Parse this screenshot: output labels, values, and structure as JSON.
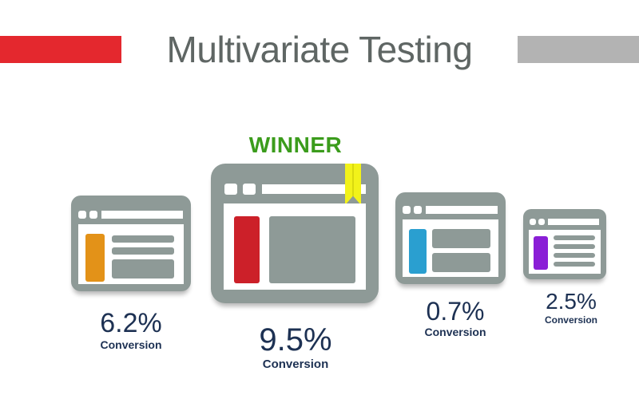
{
  "title": "Multivariate Testing",
  "winner_label": "WINNER",
  "colors": {
    "left_bar": "#e4282e",
    "right_bar": "#b3b3b3",
    "title_text": "#5f6664",
    "winner_text": "#3b9c1c",
    "window_frame": "#8e9a97",
    "percent_text": "#1d3153",
    "bookmark": "#f2f21a"
  },
  "variants": [
    {
      "name": "variant-a",
      "value": "6.2%",
      "label": "Conversion",
      "accent": "#e39218"
    },
    {
      "name": "variant-b",
      "value": "9.5%",
      "label": "Conversion",
      "accent": "#cc2029",
      "winner": true
    },
    {
      "name": "variant-c",
      "value": "0.7%",
      "label": "Conversion",
      "accent": "#2a9fd0"
    },
    {
      "name": "variant-d",
      "value": "2.5%",
      "label": "Conversion",
      "accent": "#8a1fd6"
    }
  ]
}
